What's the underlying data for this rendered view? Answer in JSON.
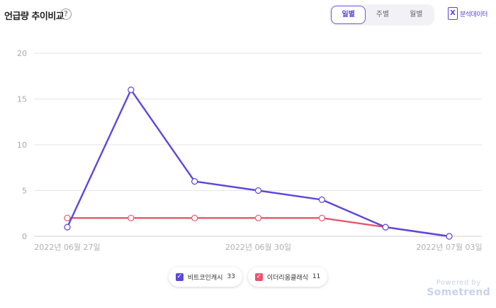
{
  "header": {
    "title": "언급량 추이비교",
    "help_icon": "?",
    "tabs": [
      {
        "label": "일별",
        "active": true
      },
      {
        "label": "주별",
        "active": false
      },
      {
        "label": "월별",
        "active": false
      }
    ],
    "excel_icon": "X",
    "excel_label": "분석데이터"
  },
  "chart_data": {
    "type": "line",
    "title": "",
    "xlabel": "",
    "ylabel": "",
    "ylim": [
      0,
      20
    ],
    "yticks": [
      "0",
      "5",
      "10",
      "15",
      "20"
    ],
    "x": [
      "2022-06-27",
      "2022-06-28",
      "2022-06-29",
      "2022-06-30",
      "2022-07-01",
      "2022-07-02",
      "2022-07-03"
    ],
    "xtick_labels": [
      "2022년 06월 27일",
      "2022년 06월 30일",
      "2022년 07월 03일"
    ],
    "grid": true,
    "series": [
      {
        "name": "비트코인캐시",
        "total": "33",
        "color": "#5b48dc",
        "values": [
          1,
          16,
          6,
          5,
          4,
          1,
          0
        ]
      },
      {
        "name": "이더리움클래식",
        "total": "11",
        "color": "#e8566f",
        "values": [
          2,
          2,
          2,
          2,
          2,
          1,
          0
        ]
      }
    ]
  },
  "legend_checkmark": "✓",
  "footer": {
    "powered_by": "Powered by",
    "brand": "Sometrend"
  }
}
